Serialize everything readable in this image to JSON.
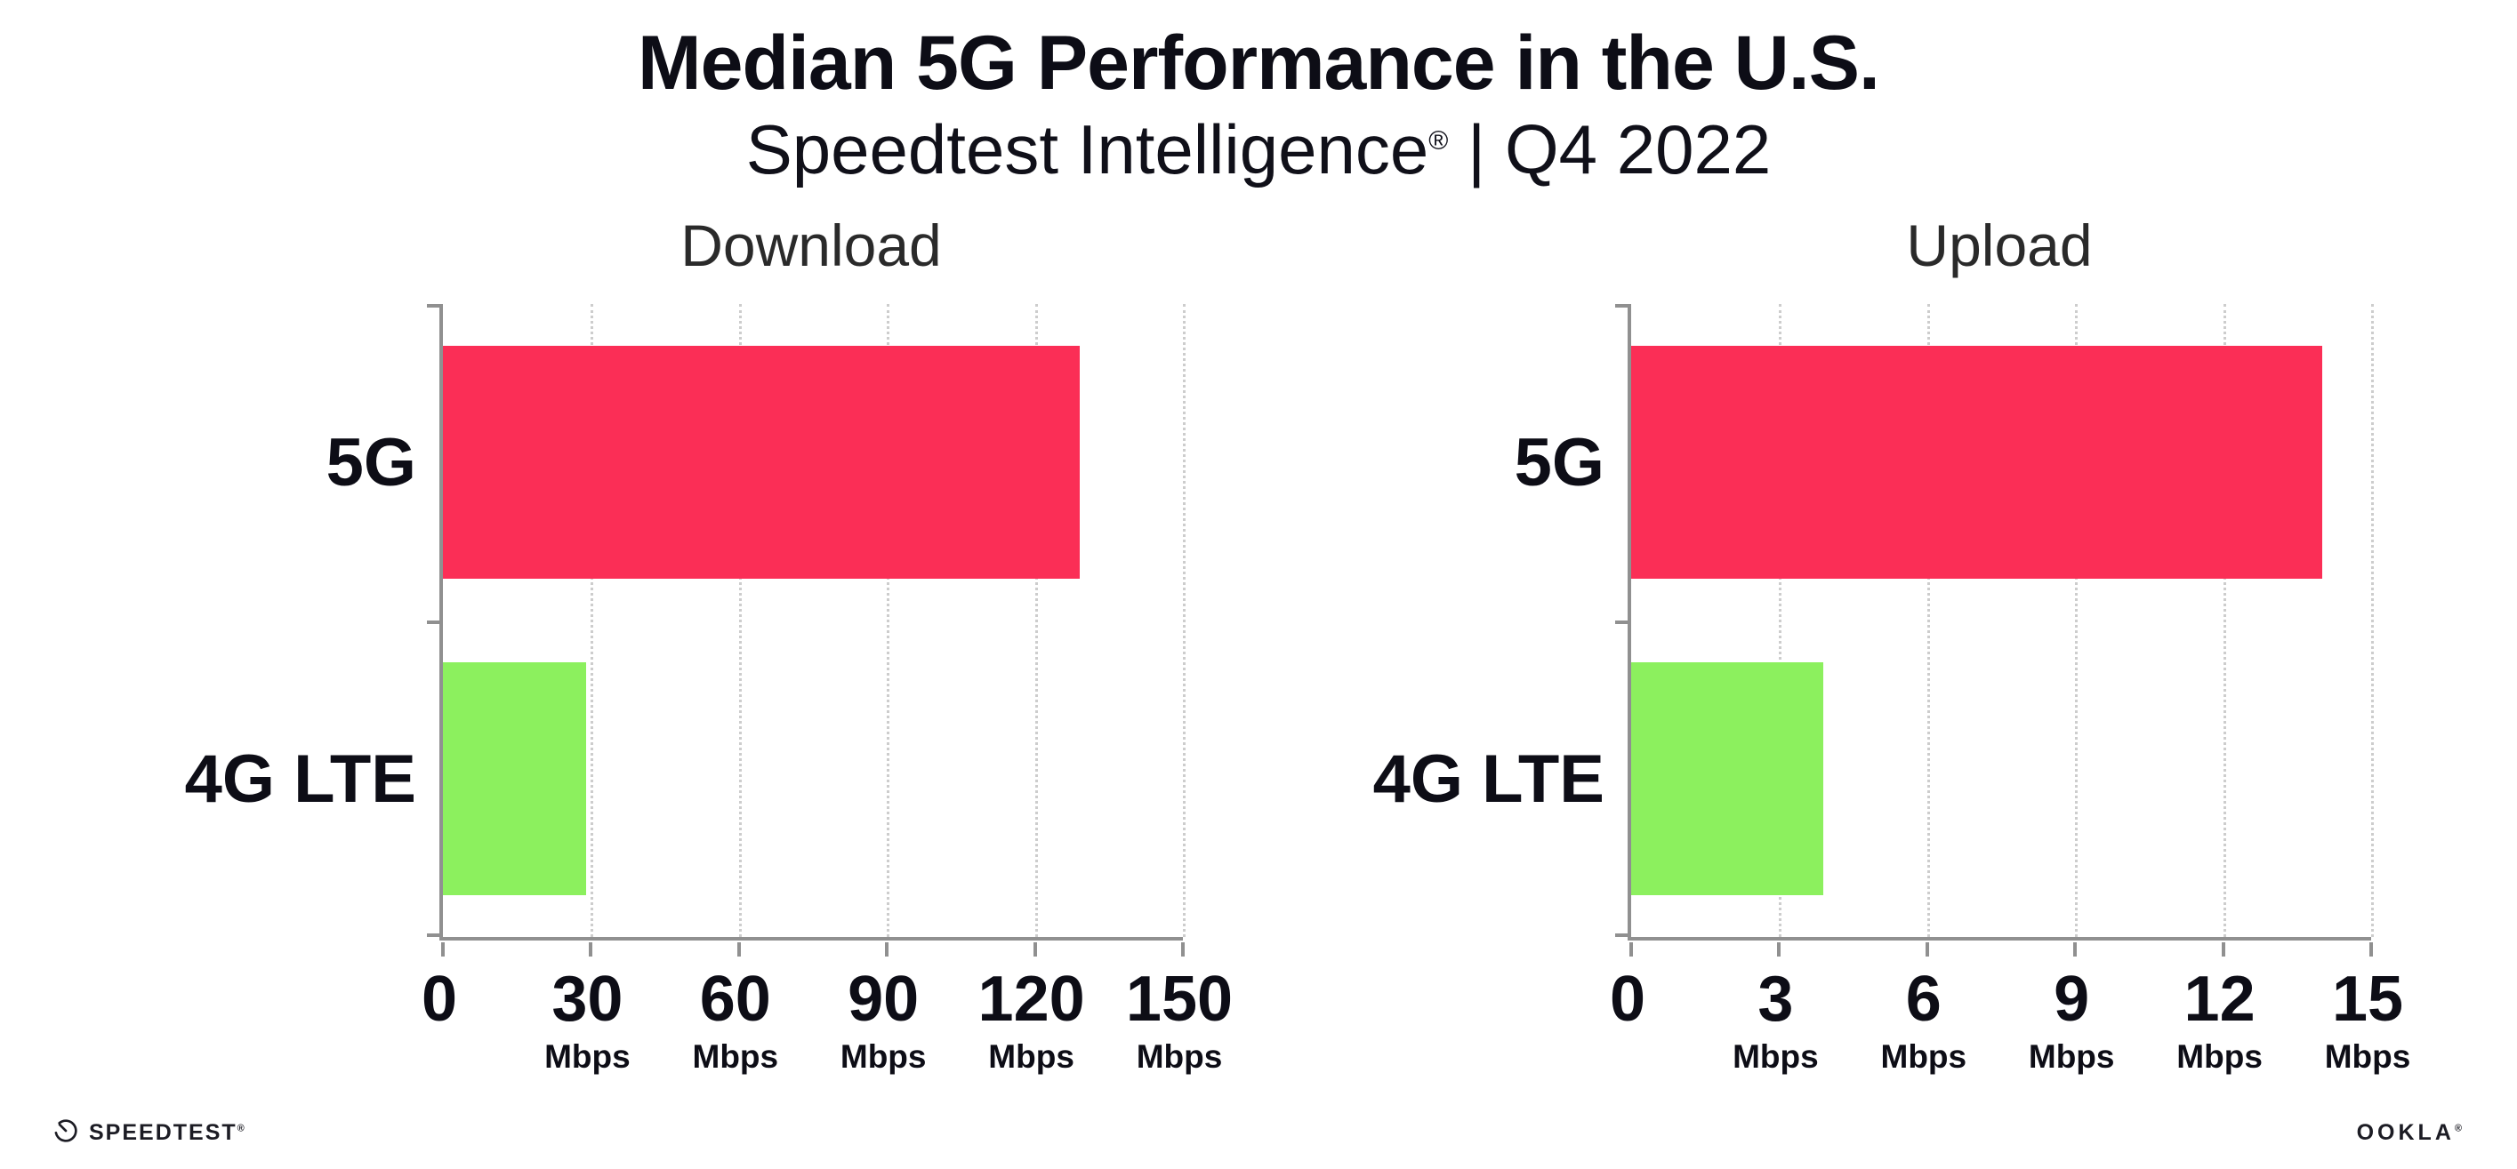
{
  "header": {
    "title": "Median 5G Performance in the U.S.",
    "subtitle_brand": "Speedtest Intelligence",
    "subtitle_reg": "®",
    "subtitle_period": " | Q4 2022"
  },
  "footer": {
    "speedtest_label": "SPEEDTEST",
    "speedtest_reg": "®",
    "ookla_label": "OOKLA",
    "ookla_reg": "®"
  },
  "colors": {
    "bar_5g": "#fb2e56",
    "bar_4g_lte": "#8cf05e",
    "axis": "#909090",
    "gridline": "#cdcdcd",
    "title_text": "#0d0d16",
    "panel_title_text": "#2a2a2a"
  },
  "chart_data": [
    {
      "type": "bar",
      "orientation": "horizontal",
      "title": "Download",
      "categories": [
        "5G",
        "4G LTE"
      ],
      "values": [
        129,
        29
      ],
      "unit": "Mbps",
      "xlabel": "",
      "ylabel": "",
      "xlim": [
        0,
        150
      ],
      "xticks": [
        0,
        30,
        60,
        90,
        120,
        150
      ],
      "bar_colors": [
        "#fb2e56",
        "#8cf05e"
      ],
      "grid": "dotted-vertical",
      "legend": "none"
    },
    {
      "type": "bar",
      "orientation": "horizontal",
      "title": "Upload",
      "categories": [
        "5G",
        "4G LTE"
      ],
      "values": [
        14,
        3.9
      ],
      "unit": "Mbps",
      "xlabel": "",
      "ylabel": "",
      "xlim": [
        0,
        15
      ],
      "xticks": [
        0,
        3,
        6,
        9,
        12,
        15
      ],
      "bar_colors": [
        "#fb2e56",
        "#8cf05e"
      ],
      "grid": "dotted-vertical",
      "legend": "none"
    }
  ]
}
